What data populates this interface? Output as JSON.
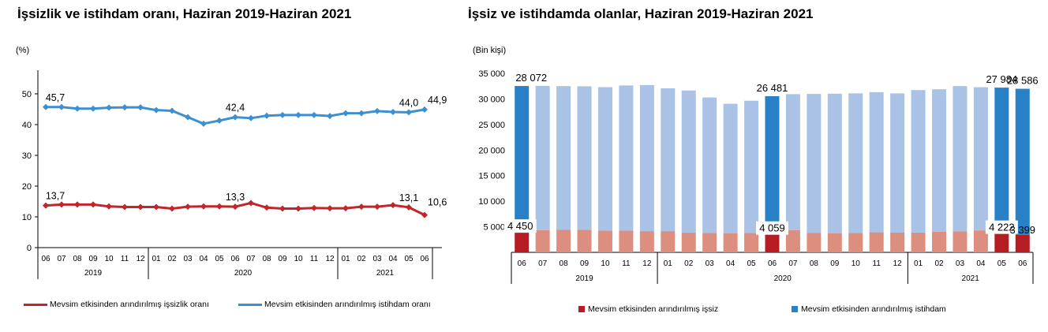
{
  "left": {
    "title": "İşsizlik ve istihdam oranı, Haziran 2019-Haziran 2021",
    "unit": "(%)"
  },
  "right": {
    "title": "İşsiz ve istihdamda olanlar, Haziran 2019-Haziran 2021",
    "unit": "(Bin kişi)"
  },
  "chart_data": [
    {
      "type": "line",
      "title": "İşsizlik ve istihdam oranı, Haziran 2019-Haziran 2021",
      "ylabel": "(%)",
      "ylim": [
        0,
        50
      ],
      "yticks": [
        0,
        10,
        20,
        30,
        40,
        50
      ],
      "categories": [
        "06",
        "07",
        "08",
        "09",
        "10",
        "11",
        "12",
        "01",
        "02",
        "03",
        "04",
        "05",
        "06",
        "07",
        "08",
        "09",
        "10",
        "11",
        "12",
        "01",
        "02",
        "03",
        "04",
        "05",
        "06"
      ],
      "year_groups": [
        {
          "label": "2019",
          "start": 0,
          "end": 6
        },
        {
          "label": "2020",
          "start": 7,
          "end": 18
        },
        {
          "label": "2021",
          "start": 19,
          "end": 24
        }
      ],
      "series": [
        {
          "name": "Mevsim etkisinden arındırılmış işsizlik oranı",
          "color": "#c0262b",
          "values": [
            13.7,
            14.0,
            14.0,
            14.0,
            13.4,
            13.2,
            13.2,
            13.2,
            12.7,
            13.3,
            13.4,
            13.4,
            13.3,
            14.5,
            13.0,
            12.7,
            12.7,
            12.9,
            12.8,
            12.8,
            13.3,
            13.3,
            13.8,
            13.1,
            10.6
          ],
          "labels": {
            "0": "13,7",
            "12": "13,3",
            "23": "13,1",
            "24": "10,6"
          }
        },
        {
          "name": "Mevsim etkisinden arındırılmış istihdam oranı",
          "color": "#3e8fcf",
          "values": [
            45.7,
            45.7,
            45.2,
            45.2,
            45.5,
            45.6,
            45.6,
            44.7,
            44.5,
            42.4,
            40.3,
            41.3,
            42.4,
            42.1,
            42.9,
            43.1,
            43.1,
            43.1,
            42.8,
            43.7,
            43.7,
            44.4,
            44.1,
            44.0,
            44.9
          ],
          "labels": {
            "0": "45,7",
            "12": "42,4",
            "23": "44,0",
            "24": "44,9"
          }
        }
      ],
      "legend": "bottom"
    },
    {
      "type": "bar",
      "title": "İşsiz ve istihdamda olanlar, Haziran 2019-Haziran 2021",
      "ylabel": "(Bin kişi)",
      "ylim": [
        0,
        35000
      ],
      "yticks": [
        0,
        5000,
        10000,
        15000,
        20000,
        25000,
        30000,
        35000
      ],
      "ytick_labels": [
        "",
        "5 000",
        "10 000",
        "15 000",
        "20 000",
        "25 000",
        "30 000",
        "35 000"
      ],
      "categories": [
        "06",
        "07",
        "08",
        "09",
        "10",
        "11",
        "12",
        "01",
        "02",
        "03",
        "04",
        "05",
        "06",
        "07",
        "08",
        "09",
        "10",
        "11",
        "12",
        "01",
        "02",
        "03",
        "04",
        "05",
        "06"
      ],
      "year_groups": [
        {
          "label": "2019",
          "start": 0,
          "end": 6
        },
        {
          "label": "2020",
          "start": 7,
          "end": 18
        },
        {
          "label": "2021",
          "start": 19,
          "end": 24
        }
      ],
      "highlight": [
        0,
        12,
        23,
        24
      ],
      "series": [
        {
          "name": "Mevsim etkisinden arındırılmış işsiz",
          "color": "#b61d22",
          "light_color": "#dd8f7f",
          "values": [
            4450,
            4350,
            4400,
            4420,
            4250,
            4250,
            4150,
            4150,
            3850,
            3800,
            3750,
            3800,
            4059,
            4350,
            3780,
            3750,
            3800,
            3920,
            3860,
            3880,
            4050,
            4130,
            4300,
            4222,
            3399
          ],
          "labels": {
            "0": "4 450",
            "12": "4 059",
            "23": "4 222",
            "24": "3 399"
          }
        },
        {
          "name": "Mevsim etkisinden arındırılmış istihdam",
          "color": "#2880c6",
          "light_color": "#a9c2e6",
          "values": [
            28072,
            28200,
            28100,
            28050,
            28050,
            28380,
            28560,
            27920,
            27800,
            26480,
            25300,
            25850,
            26481,
            26580,
            27200,
            27270,
            27290,
            27400,
            27220,
            27850,
            27840,
            28380,
            27984,
            27984,
            28586
          ],
          "labels": {
            "0": "28 072",
            "12": "26 481",
            "23": "27 984",
            "24": "28 586"
          }
        }
      ],
      "legend": "bottom"
    }
  ]
}
